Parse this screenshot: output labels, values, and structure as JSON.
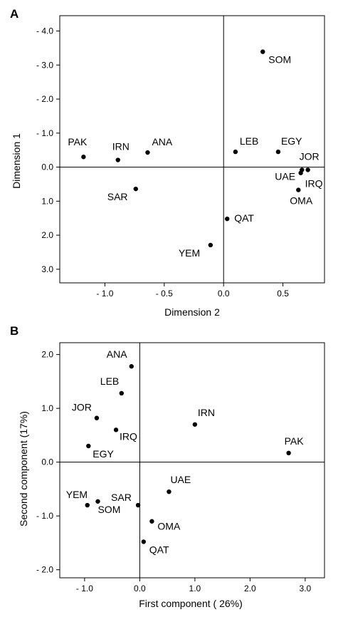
{
  "chart_data": [
    {
      "type": "scatter",
      "panel": "A",
      "xlabel": "Dimension 2",
      "ylabel": "Dimension 1",
      "xlim": [
        -1.38,
        0.85
      ],
      "ylim": [
        3.4,
        -4.45
      ],
      "y_inverted": true,
      "xticks": [
        -1.0,
        -0.5,
        0.0,
        0.5
      ],
      "xtick_labels": [
        "- 1.0",
        "- 0.5",
        "0.0",
        "0.5"
      ],
      "yticks": [
        -4.0,
        -3.0,
        -2.0,
        -1.0,
        0.0,
        1.0,
        2.0,
        3.0
      ],
      "ytick_labels": [
        "- 4.0",
        "- 3.0",
        "- 2.0",
        "- 1.0",
        "0.0",
        "1.0",
        "2.0",
        "3.0"
      ],
      "reference_lines": {
        "x": 0,
        "y": 0
      },
      "points": [
        {
          "label": "PAK",
          "x": -1.18,
          "y": -0.3
        },
        {
          "label": "IRN",
          "x": -0.89,
          "y": -0.21
        },
        {
          "label": "ANA",
          "x": -0.64,
          "y": -0.43
        },
        {
          "label": "SAR",
          "x": -0.74,
          "y": 0.64
        },
        {
          "label": "SOM",
          "x": 0.33,
          "y": -3.39
        },
        {
          "label": "LEB",
          "x": 0.1,
          "y": -0.45
        },
        {
          "label": "EGY",
          "x": 0.46,
          "y": -0.45
        },
        {
          "label": "JOR",
          "x": 0.71,
          "y": 0.08
        },
        {
          "label": "UAE",
          "x": 0.66,
          "y": 0.08
        },
        {
          "label": "IRQ",
          "x": 0.65,
          "y": 0.17
        },
        {
          "label": "OMA",
          "x": 0.63,
          "y": 0.67
        },
        {
          "label": "QAT",
          "x": 0.03,
          "y": 1.52
        },
        {
          "label": "YEM",
          "x": -0.11,
          "y": 2.29
        }
      ]
    },
    {
      "type": "scatter",
      "panel": "B",
      "xlabel": "First component ( 26%)",
      "ylabel": "Second component (17%)",
      "xlim": [
        -1.45,
        3.35
      ],
      "ylim": [
        -2.15,
        2.22
      ],
      "xticks": [
        -1.0,
        0.0,
        1.0,
        2.0,
        3.0
      ],
      "xtick_labels": [
        "- 1.0",
        "0.0",
        "1.0",
        "2.0",
        "3.0"
      ],
      "yticks": [
        2.0,
        1.0,
        0.0,
        -1.0,
        -2.0
      ],
      "ytick_labels": [
        "2.0",
        "1.0",
        "0.0",
        "- 1.0",
        "- 2.0"
      ],
      "reference_lines": {
        "x": 0,
        "y": 0
      },
      "points": [
        {
          "label": "ANA",
          "x": -0.15,
          "y": 1.78
        },
        {
          "label": "LEB",
          "x": -0.33,
          "y": 1.28
        },
        {
          "label": "JOR",
          "x": -0.78,
          "y": 0.82
        },
        {
          "label": "IRQ",
          "x": -0.43,
          "y": 0.6
        },
        {
          "label": "EGY",
          "x": -0.93,
          "y": 0.3
        },
        {
          "label": "IRN",
          "x": 1.0,
          "y": 0.7
        },
        {
          "label": "PAK",
          "x": 2.7,
          "y": 0.17
        },
        {
          "label": "UAE",
          "x": 0.53,
          "y": -0.55
        },
        {
          "label": "YEM",
          "x": -0.95,
          "y": -0.8
        },
        {
          "label": "SOM",
          "x": -0.76,
          "y": -0.73
        },
        {
          "label": "SAR",
          "x": -0.03,
          "y": -0.8
        },
        {
          "label": "OMA",
          "x": 0.22,
          "y": -1.1
        },
        {
          "label": "QAT",
          "x": 0.07,
          "y": -1.48
        }
      ]
    }
  ],
  "panels": {
    "a": {
      "letter": "A"
    },
    "b": {
      "letter": "B"
    }
  }
}
